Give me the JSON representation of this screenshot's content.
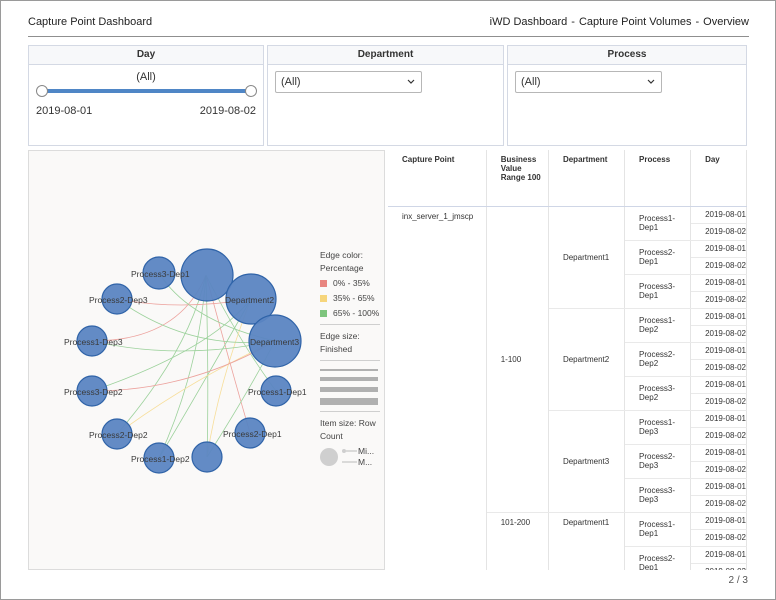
{
  "header": {
    "title": "Capture Point Dashboard",
    "breadcrumb": [
      "iWD Dashboard",
      "Capture Point Volumes",
      "Overview"
    ],
    "separator": "-"
  },
  "filters": {
    "day": {
      "title": "Day",
      "value": "(All)",
      "start": "2019-08-01",
      "end": "2019-08-02"
    },
    "department": {
      "title": "Department",
      "value": "(All)"
    },
    "process": {
      "title": "Process",
      "value": "(All)"
    }
  },
  "network": {
    "nodes": [
      "Process3-Dep1",
      "Department2",
      "Department3",
      "Process2-Dep3",
      "Process1-Dep3",
      "Process3-Dep2",
      "Process2-Dep2",
      "Process1-Dep2",
      "Process2-Dep1",
      "Process1-Dep1"
    ],
    "legend": {
      "edge_color_title": "Edge color:",
      "edge_color_field": "Percentage",
      "ranges": [
        {
          "label": "0% - 35%",
          "color": "#e8857f"
        },
        {
          "label": "35% - 65%",
          "color": "#f6d57b"
        },
        {
          "label": "65% - 100%",
          "color": "#7dc47d"
        }
      ],
      "edge_size_title": "Edge size:",
      "edge_size_field": "Finished",
      "item_size_title": "Item size: Row Count",
      "min_label": "Mi...",
      "max_label": "M..."
    }
  },
  "table": {
    "columns": [
      "Capture Point",
      "Business Value Range 100",
      "Department",
      "Process",
      "Day"
    ],
    "capture_point": "inx_server_1_jmscp",
    "ranges": [
      "1-100",
      "101-200"
    ],
    "departments": [
      "Department1",
      "Department2",
      "Department3",
      "Department1"
    ],
    "processes": [
      "Process1-Dep1",
      "Process2-Dep1",
      "Process3-Dep1",
      "Process1-Dep2",
      "Process2-Dep2",
      "Process3-Dep2",
      "Process1-Dep3",
      "Process2-Dep3",
      "Process3-Dep3",
      "Process1-Dep1",
      "Process2-Dep1"
    ],
    "days": [
      "2019-08-01",
      "2019-08-02"
    ]
  },
  "footer": {
    "page": "2 / 3"
  },
  "colors": {
    "node_fill": "#5b85c2",
    "node_stroke": "#2f63a8",
    "accent": "#4f86c6"
  }
}
